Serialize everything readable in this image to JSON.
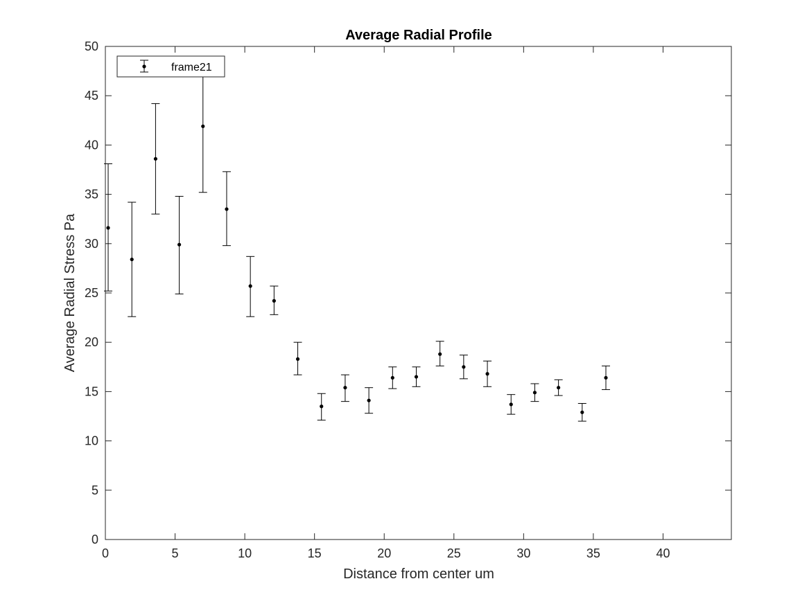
{
  "chart_data": {
    "type": "scatter",
    "title": "Average Radial Profile",
    "xlabel": "Distance from center um",
    "ylabel": "Average Radial Stress Pa",
    "xlim": [
      0,
      44.9
    ],
    "ylim": [
      0,
      50
    ],
    "xticks": [
      0,
      5,
      10,
      15,
      20,
      25,
      30,
      35,
      40
    ],
    "yticks": [
      0,
      5,
      10,
      15,
      20,
      25,
      30,
      35,
      40,
      45,
      50
    ],
    "grid": false,
    "legend": {
      "placement": "top-left",
      "entries": [
        "frame21"
      ]
    },
    "series": [
      {
        "name": "frame21",
        "x": [
          0.2,
          1.9,
          3.6,
          5.3,
          7.0,
          8.7,
          10.4,
          12.1,
          13.8,
          15.5,
          17.2,
          18.9,
          20.6,
          22.3,
          24.0,
          25.7,
          27.4,
          29.1,
          30.8,
          32.5,
          34.2,
          35.9
        ],
        "y": [
          31.6,
          28.4,
          38.6,
          29.9,
          41.9,
          33.5,
          25.7,
          24.2,
          18.3,
          13.5,
          15.4,
          14.1,
          16.4,
          16.5,
          18.8,
          17.5,
          16.8,
          13.7,
          14.9,
          15.4,
          12.9,
          16.4
        ],
        "err_low": [
          25.2,
          22.6,
          33.0,
          24.9,
          35.2,
          29.8,
          22.6,
          22.8,
          16.7,
          12.1,
          14.0,
          12.8,
          15.3,
          15.5,
          17.6,
          16.3,
          15.5,
          12.7,
          14.0,
          14.6,
          12.0,
          15.2
        ],
        "err_high": [
          38.1,
          34.2,
          44.2,
          34.8,
          47.5,
          37.3,
          28.7,
          25.7,
          20.0,
          14.8,
          16.7,
          15.4,
          17.5,
          17.5,
          20.1,
          18.7,
          18.1,
          14.7,
          15.8,
          16.2,
          13.8,
          17.6
        ]
      }
    ]
  }
}
